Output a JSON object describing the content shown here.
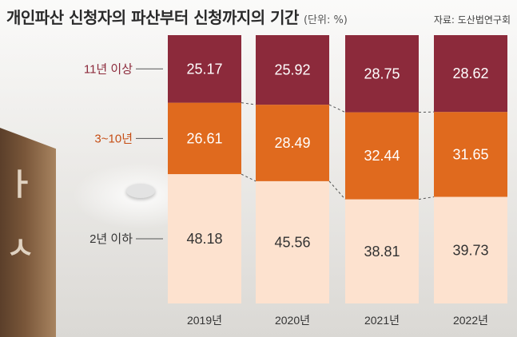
{
  "title": "개인파산 신청자의 파산부터 신청까지의 기간",
  "unit": "(단위: %)",
  "source": "자료: 도산법연구회",
  "colors": {
    "top": "#8c2a3b",
    "mid": "#e06a1e",
    "bottom": "#fde2cf",
    "label_top": "#8c2a3b",
    "label_mid": "#c64f16",
    "label_bottom": "#333333"
  },
  "chart_data": {
    "type": "bar",
    "stacked": true,
    "categories": [
      "2019년",
      "2020년",
      "2021년",
      "2022년"
    ],
    "series": [
      {
        "name": "2년 이하",
        "values": [
          48.18,
          45.56,
          38.81,
          39.73
        ]
      },
      {
        "name": "3~10년",
        "values": [
          26.61,
          28.49,
          32.44,
          31.65
        ]
      },
      {
        "name": "11년 이상",
        "values": [
          25.17,
          25.92,
          28.75,
          28.62
        ]
      }
    ],
    "ylim": [
      0,
      100
    ]
  }
}
